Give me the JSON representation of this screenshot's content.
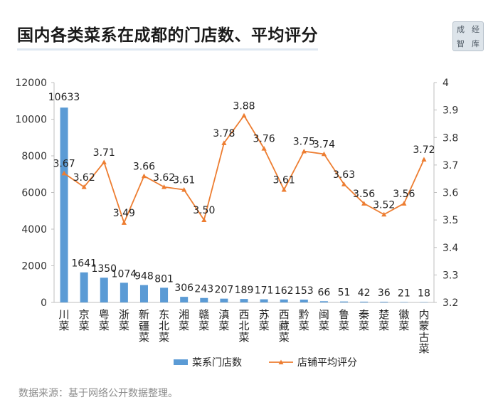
{
  "title": "国内各类菜系在成都的门店数、平均评分",
  "logo": {
    "chars": [
      "成",
      "经",
      "智",
      "库"
    ]
  },
  "source": "数据来源：基于网络公开数据整理。",
  "chart_data": {
    "type": "bar+line",
    "categories": [
      "川菜",
      "京菜",
      "粤菜",
      "浙菜",
      "新疆菜",
      "东北菜",
      "湘菜",
      "赣菜",
      "滇菜",
      "西北菜",
      "苏菜",
      "西藏菜",
      "黔菜",
      "闽菜",
      "鲁菜",
      "秦菜",
      "楚菜",
      "徽菜",
      "内蒙古菜"
    ],
    "series": [
      {
        "name": "菜系门店数",
        "type": "bar",
        "axis": "left",
        "color": "#5b9bd5",
        "values": [
          10633,
          1641,
          1350,
          1074,
          948,
          801,
          306,
          243,
          207,
          189,
          171,
          162,
          153,
          66,
          51,
          42,
          36,
          21,
          18
        ]
      },
      {
        "name": "店铺平均评分",
        "type": "line",
        "axis": "right",
        "color": "#ed7d31",
        "values": [
          3.67,
          3.62,
          3.71,
          3.49,
          3.66,
          3.62,
          3.61,
          3.5,
          3.78,
          3.88,
          3.76,
          3.61,
          3.75,
          3.74,
          3.63,
          3.56,
          3.52,
          3.56,
          3.72
        ]
      }
    ],
    "y_left": {
      "min": 0,
      "max": 12000,
      "ticks": [
        0,
        2000,
        4000,
        6000,
        8000,
        10000,
        12000
      ]
    },
    "y_right": {
      "min": 3.2,
      "max": 4.0,
      "ticks": [
        "3.2",
        "3.3",
        "3.4",
        "3.5",
        "3.6",
        "3.7",
        "3.8",
        "3.9",
        "4"
      ]
    },
    "bar_labels": [
      "10633",
      "1641",
      "1350",
      "1074",
      "948",
      "801",
      "306",
      "243",
      "207",
      "189",
      "171",
      "162",
      "153",
      "66",
      "51",
      "42",
      "36",
      "21",
      "18"
    ],
    "line_labels": [
      "3.67",
      "3.62",
      "3.71",
      "3.49",
      "3.66",
      "3.62",
      "3.61",
      "3.50",
      "3.78",
      "3.88",
      "3.76",
      "3.61",
      "3.75",
      "3.74",
      "3.63",
      "3.56",
      "3.52",
      "3.56",
      "3.72"
    ],
    "legend": [
      "菜系门店数",
      "店铺平均评分"
    ],
    "legend_position": "bottom"
  }
}
